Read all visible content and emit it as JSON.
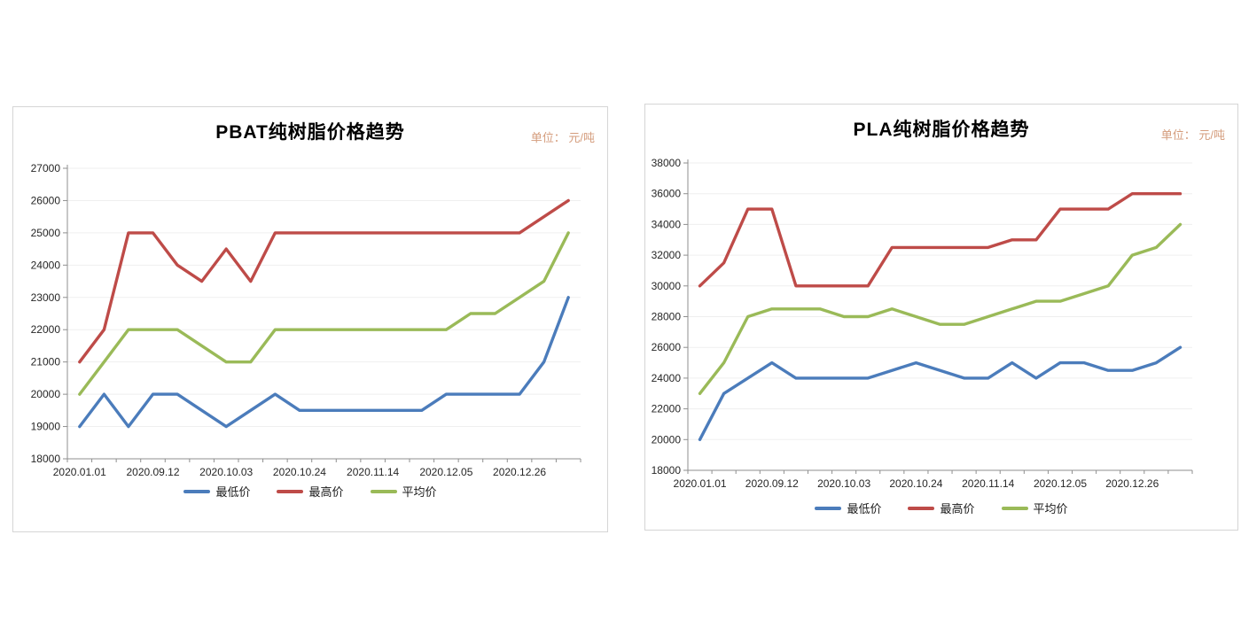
{
  "chart_data": [
    {
      "type": "line",
      "title": "PBAT纯树脂价格趋势",
      "unit_label": "单位： 元/吨",
      "n_points": 21,
      "x_labels": [
        "2020.01.01",
        "2020.09.12",
        "2020.10.03",
        "2020.10.24",
        "2020.11.14",
        "2020.12.05",
        "2020.12.26"
      ],
      "label_indices": [
        0,
        3,
        6,
        9,
        12,
        15,
        18
      ],
      "ylim": [
        18000,
        27000
      ],
      "ytick_step": 1000,
      "grid": true,
      "legend_position": "bottom",
      "series": [
        {
          "key": "min-price",
          "name": "最低价",
          "color": "#4b7cbb",
          "values": [
            19000,
            20000,
            19000,
            20000,
            20000,
            19500,
            19000,
            19500,
            20000,
            19500,
            19500,
            19500,
            19500,
            19500,
            19500,
            20000,
            20000,
            20000,
            20000,
            21000,
            23000
          ]
        },
        {
          "key": "max-price",
          "name": "最高价",
          "color": "#be4b48",
          "values": [
            21000,
            22000,
            25000,
            25000,
            24000,
            23500,
            24500,
            23500,
            25000,
            25000,
            25000,
            25000,
            25000,
            25000,
            25000,
            25000,
            25000,
            25000,
            25000,
            25500,
            26000
          ]
        },
        {
          "key": "avg-price",
          "name": "平均价",
          "color": "#9aba58",
          "values": [
            20000,
            21000,
            22000,
            22000,
            22000,
            21500,
            21000,
            21000,
            22000,
            22000,
            22000,
            22000,
            22000,
            22000,
            22000,
            22000,
            22500,
            22500,
            23000,
            23500,
            25000
          ]
        }
      ]
    },
    {
      "type": "line",
      "title": "PLA纯树脂价格趋势",
      "unit_label": "单位： 元/吨",
      "n_points": 21,
      "x_labels": [
        "2020.01.01",
        "2020.09.12",
        "2020.10.03",
        "2020.10.24",
        "2020.11.14",
        "2020.12.05",
        "2020.12.26"
      ],
      "label_indices": [
        0,
        3,
        6,
        9,
        12,
        15,
        18
      ],
      "ylim": [
        18000,
        38000
      ],
      "ytick_step": 2000,
      "grid": true,
      "legend_position": "bottom",
      "series": [
        {
          "key": "min-price",
          "name": "最低价",
          "color": "#4b7cbb",
          "values": [
            20000,
            23000,
            24000,
            25000,
            24000,
            24000,
            24000,
            24000,
            24500,
            25000,
            24500,
            24000,
            24000,
            25000,
            24000,
            25000,
            25000,
            24500,
            24500,
            25000,
            26000
          ]
        },
        {
          "key": "max-price",
          "name": "最高价",
          "color": "#be4b48",
          "values": [
            30000,
            31500,
            35000,
            35000,
            30000,
            30000,
            30000,
            30000,
            32500,
            32500,
            32500,
            32500,
            32500,
            33000,
            33000,
            35000,
            35000,
            35000,
            36000,
            36000,
            36000
          ]
        },
        {
          "key": "avg-price",
          "name": "平均价",
          "color": "#9aba58",
          "values": [
            23000,
            25000,
            28000,
            28500,
            28500,
            28500,
            28000,
            28000,
            28500,
            28000,
            27500,
            27500,
            28000,
            28500,
            29000,
            29000,
            29500,
            30000,
            32000,
            32500,
            34000
          ]
        }
      ]
    }
  ],
  "style_colors": {
    "axis": "#8f8f8f",
    "gridline": "#efefef",
    "tick_label": "#262626",
    "unit_text": "#d49c7c",
    "panel_border": "#d5d5d5"
  }
}
